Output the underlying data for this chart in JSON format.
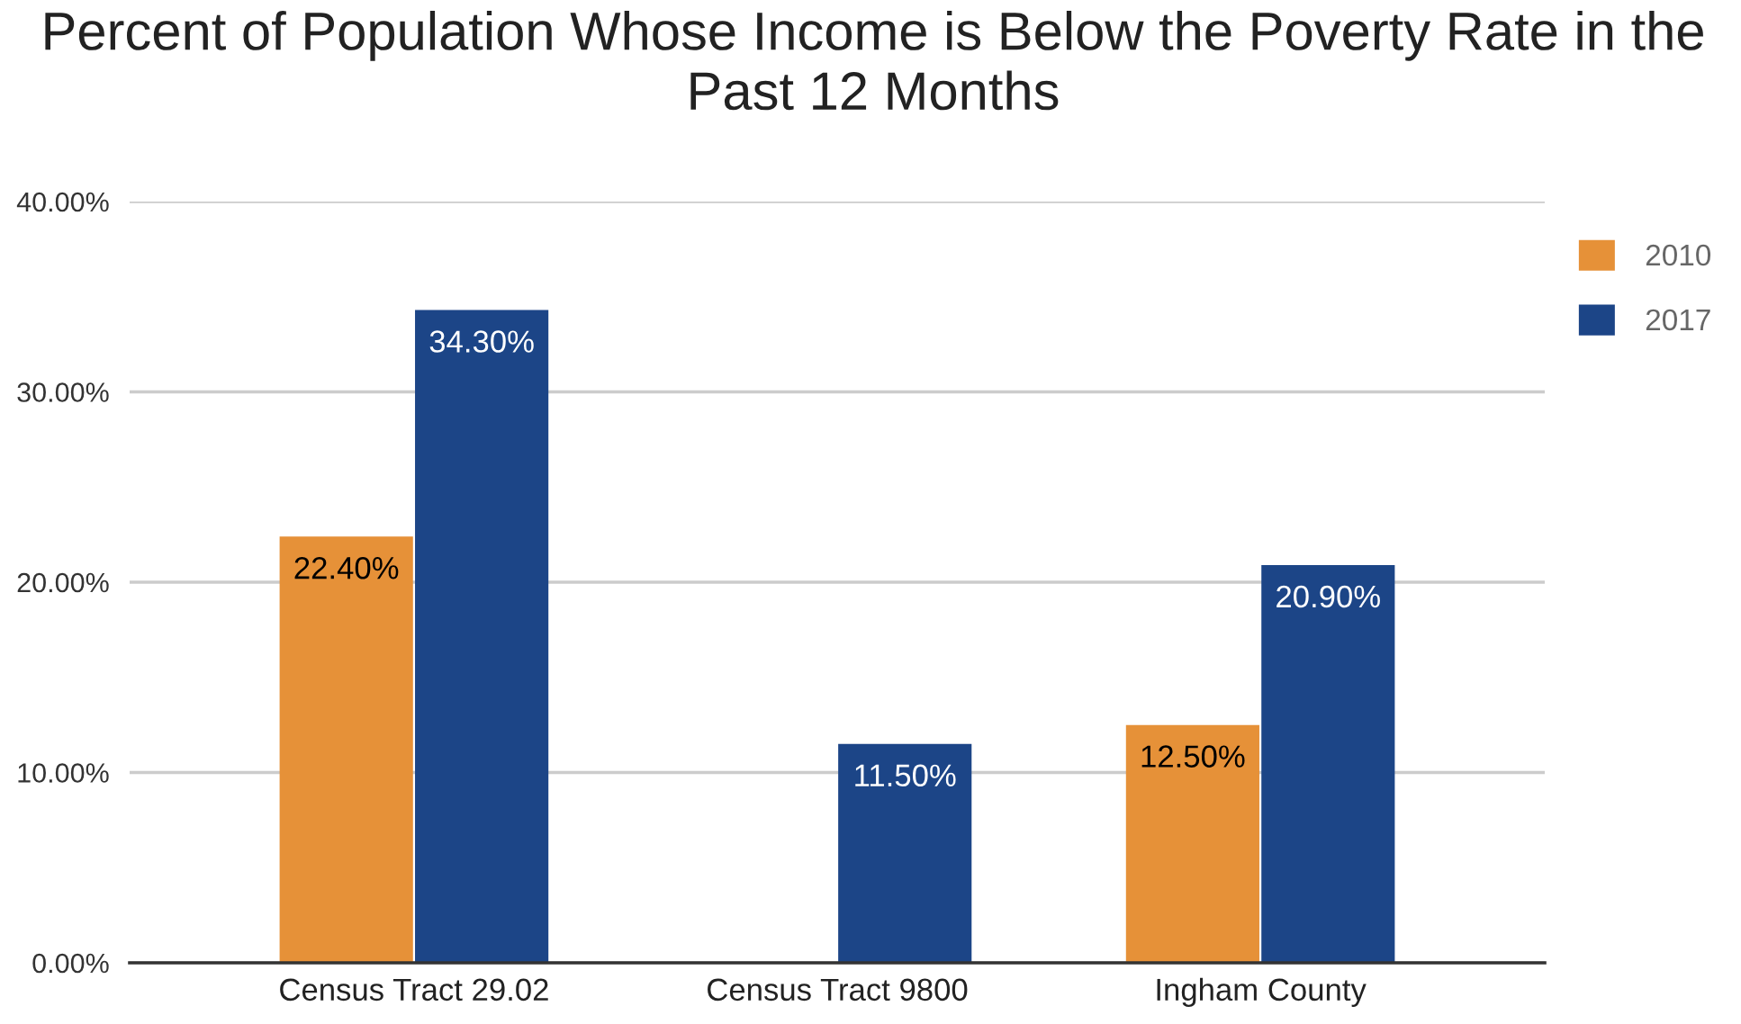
{
  "chart_data": {
    "type": "bar",
    "title": "Percent of Population Whose Income is Below the Poverty Rate in the Past 12 Months",
    "categories": [
      "Census Tract 29.02",
      "Census Tract 9800",
      "Ingham County"
    ],
    "series": [
      {
        "name": "2010",
        "color": "#e69138",
        "values": [
          22.4,
          null,
          12.5
        ],
        "value_labels": [
          "22.40%",
          null,
          "12.50%"
        ]
      },
      {
        "name": "2017",
        "color": "#1c4587",
        "values": [
          34.3,
          11.5,
          20.9
        ],
        "value_labels": [
          "34.30%",
          "11.50%",
          "20.90%"
        ]
      }
    ],
    "ylim": [
      0,
      40
    ],
    "yticks": [
      {
        "value": 0,
        "label": "0.00%"
      },
      {
        "value": 10,
        "label": "10.00%"
      },
      {
        "value": 20,
        "label": "20.00%"
      },
      {
        "value": 30,
        "label": "30.00%"
      },
      {
        "value": 40,
        "label": "40.00%"
      }
    ],
    "grid": "y",
    "legend": "top right"
  }
}
